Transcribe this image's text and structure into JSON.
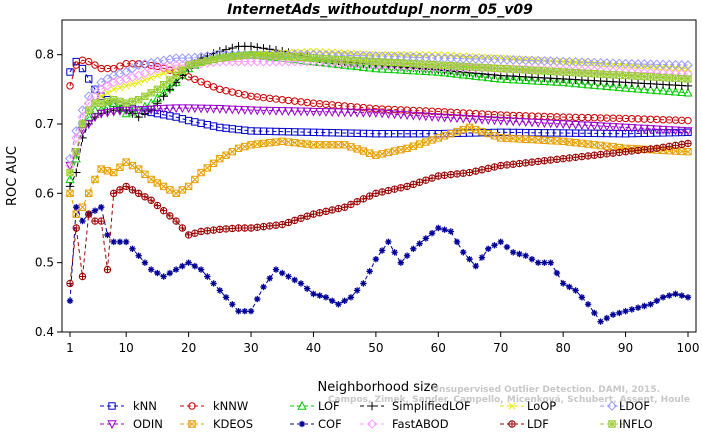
{
  "chart_data": {
    "type": "line",
    "title": "InternetAds_withoutdupl_norm_05_v09",
    "xlabel": "Neighborhood size",
    "ylabel": "ROC AUC",
    "xlim": [
      1,
      100
    ],
    "ylim": [
      0.4,
      0.85
    ],
    "xticks": [
      1,
      10,
      20,
      30,
      40,
      50,
      60,
      70,
      80,
      90,
      100
    ],
    "yticks": [
      0.4,
      0.5,
      0.6,
      0.7,
      0.8
    ],
    "legend_position": "bottom",
    "watermark": [
      "Campos, Zimek, Sander, Campello, Micenková, Schubert, Assent, Houle",
      "Unsupervised Outlier Detection. DAMI, 2015."
    ],
    "series": [
      {
        "name": "kNN",
        "color": "#0000cc",
        "marker": "square",
        "x": [
          1,
          2,
          3,
          4,
          5,
          6,
          8,
          10,
          12,
          15,
          18,
          20,
          25,
          30,
          40,
          50,
          60,
          70,
          80,
          90,
          100
        ],
        "y": [
          0.775,
          0.79,
          0.78,
          0.765,
          0.75,
          0.74,
          0.73,
          0.725,
          0.72,
          0.715,
          0.71,
          0.705,
          0.695,
          0.69,
          0.688,
          0.686,
          0.686,
          0.688,
          0.687,
          0.686,
          0.688
        ]
      },
      {
        "name": "kNNW",
        "color": "#cc0000",
        "marker": "circle",
        "x": [
          1,
          2,
          3,
          4,
          5,
          6,
          8,
          10,
          12,
          15,
          18,
          20,
          25,
          30,
          40,
          50,
          60,
          70,
          80,
          90,
          100
        ],
        "y": [
          0.755,
          0.785,
          0.792,
          0.79,
          0.785,
          0.78,
          0.78,
          0.787,
          0.787,
          0.783,
          0.775,
          0.768,
          0.75,
          0.74,
          0.73,
          0.722,
          0.718,
          0.713,
          0.71,
          0.708,
          0.705
        ]
      },
      {
        "name": "LOF",
        "color": "#00cc00",
        "marker": "triangle",
        "x": [
          1,
          2,
          3,
          4,
          5,
          6,
          8,
          10,
          12,
          14,
          16,
          18,
          20,
          22,
          25,
          28,
          30,
          35,
          40,
          50,
          60,
          70,
          80,
          90,
          100
        ],
        "y": [
          0.62,
          0.65,
          0.7,
          0.71,
          0.72,
          0.72,
          0.73,
          0.715,
          0.72,
          0.73,
          0.745,
          0.76,
          0.78,
          0.79,
          0.795,
          0.8,
          0.8,
          0.795,
          0.79,
          0.78,
          0.775,
          0.765,
          0.76,
          0.752,
          0.745
        ]
      },
      {
        "name": "SimplifiedLOF",
        "color": "#000000",
        "marker": "plus",
        "x": [
          1,
          2,
          3,
          4,
          5,
          6,
          8,
          10,
          12,
          14,
          16,
          18,
          20,
          22,
          25,
          28,
          30,
          35,
          40,
          50,
          60,
          70,
          80,
          90,
          100
        ],
        "y": [
          0.61,
          0.63,
          0.68,
          0.7,
          0.71,
          0.715,
          0.72,
          0.72,
          0.71,
          0.72,
          0.74,
          0.76,
          0.78,
          0.795,
          0.805,
          0.812,
          0.812,
          0.805,
          0.795,
          0.785,
          0.778,
          0.77,
          0.765,
          0.76,
          0.755
        ]
      },
      {
        "name": "LoOP",
        "color": "#e6e600",
        "marker": "x",
        "x": [
          1,
          2,
          3,
          4,
          5,
          6,
          8,
          10,
          12,
          15,
          18,
          20,
          25,
          30,
          40,
          50,
          60,
          70,
          80,
          90,
          100
        ],
        "y": [
          0.63,
          0.66,
          0.7,
          0.72,
          0.73,
          0.74,
          0.75,
          0.755,
          0.76,
          0.77,
          0.78,
          0.785,
          0.795,
          0.8,
          0.805,
          0.8,
          0.8,
          0.795,
          0.79,
          0.785,
          0.78
        ]
      },
      {
        "name": "LDOF",
        "color": "#9999ff",
        "marker": "diamond",
        "x": [
          1,
          2,
          3,
          4,
          5,
          6,
          8,
          10,
          12,
          15,
          18,
          20,
          25,
          30,
          40,
          50,
          60,
          70,
          80,
          90,
          100
        ],
        "y": [
          0.65,
          0.69,
          0.72,
          0.74,
          0.75,
          0.76,
          0.77,
          0.775,
          0.785,
          0.79,
          0.795,
          0.795,
          0.8,
          0.8,
          0.8,
          0.798,
          0.795,
          0.793,
          0.79,
          0.787,
          0.785
        ]
      },
      {
        "name": "ODIN",
        "color": "#9900cc",
        "marker": "triangle-down",
        "x": [
          1,
          2,
          3,
          4,
          5,
          6,
          8,
          10,
          12,
          15,
          18,
          20,
          25,
          30,
          40,
          50,
          60,
          70,
          80,
          90,
          100
        ],
        "y": [
          0.64,
          0.66,
          0.69,
          0.7,
          0.71,
          0.715,
          0.718,
          0.72,
          0.72,
          0.722,
          0.723,
          0.723,
          0.722,
          0.72,
          0.718,
          0.716,
          0.71,
          0.705,
          0.7,
          0.695,
          0.69
        ]
      },
      {
        "name": "KDEOS",
        "color": "#e6a000",
        "marker": "boxtimes",
        "x": [
          1,
          2,
          3,
          4,
          5,
          6,
          8,
          10,
          12,
          14,
          16,
          18,
          20,
          22,
          25,
          28,
          30,
          35,
          40,
          45,
          50,
          55,
          60,
          65,
          70,
          80,
          90,
          100
        ],
        "y": [
          0.6,
          0.57,
          0.58,
          0.6,
          0.62,
          0.635,
          0.63,
          0.645,
          0.635,
          0.62,
          0.61,
          0.6,
          0.61,
          0.63,
          0.65,
          0.665,
          0.67,
          0.675,
          0.67,
          0.67,
          0.655,
          0.665,
          0.68,
          0.695,
          0.68,
          0.675,
          0.665,
          0.66
        ]
      },
      {
        "name": "COF",
        "color": "#000099",
        "marker": "asterisk",
        "x": [
          1,
          2,
          3,
          4,
          5,
          6,
          7,
          8,
          10,
          12,
          14,
          16,
          18,
          20,
          22,
          24,
          26,
          28,
          30,
          32,
          34,
          36,
          38,
          40,
          42,
          44,
          46,
          48,
          50,
          52,
          54,
          56,
          58,
          60,
          62,
          64,
          66,
          68,
          70,
          72,
          74,
          76,
          78,
          80,
          82,
          84,
          86,
          88,
          90,
          92,
          94,
          96,
          98,
          100
        ],
        "y": [
          0.445,
          0.58,
          0.56,
          0.57,
          0.575,
          0.58,
          0.54,
          0.53,
          0.53,
          0.51,
          0.49,
          0.48,
          0.49,
          0.5,
          0.49,
          0.47,
          0.45,
          0.43,
          0.43,
          0.465,
          0.49,
          0.48,
          0.47,
          0.455,
          0.45,
          0.44,
          0.45,
          0.47,
          0.505,
          0.53,
          0.5,
          0.52,
          0.535,
          0.55,
          0.545,
          0.515,
          0.495,
          0.52,
          0.53,
          0.515,
          0.51,
          0.5,
          0.5,
          0.47,
          0.46,
          0.44,
          0.415,
          0.425,
          0.43,
          0.435,
          0.44,
          0.45,
          0.455,
          0.45
        ]
      },
      {
        "name": "FastABOD",
        "color": "#ff99ff",
        "marker": "diamond",
        "x": [
          1,
          2,
          3,
          4,
          5,
          6,
          8,
          10,
          12,
          15,
          18,
          20,
          25,
          30,
          40,
          50,
          60,
          70,
          80,
          90,
          100
        ],
        "y": [
          0.64,
          0.68,
          0.71,
          0.73,
          0.74,
          0.75,
          0.76,
          0.765,
          0.77,
          0.78,
          0.785,
          0.785,
          0.79,
          0.79,
          0.79,
          0.785,
          0.782,
          0.78,
          0.778,
          0.775,
          0.772
        ]
      },
      {
        "name": "LDF",
        "color": "#990000",
        "marker": "circleplus",
        "x": [
          1,
          2,
          3,
          4,
          5,
          6,
          7,
          8,
          10,
          12,
          14,
          16,
          18,
          20,
          22,
          25,
          28,
          30,
          35,
          40,
          45,
          50,
          55,
          60,
          65,
          70,
          75,
          80,
          85,
          90,
          95,
          100
        ],
        "y": [
          0.47,
          0.55,
          0.48,
          0.57,
          0.56,
          0.56,
          0.49,
          0.6,
          0.61,
          0.6,
          0.59,
          0.575,
          0.56,
          0.54,
          0.545,
          0.548,
          0.55,
          0.55,
          0.555,
          0.57,
          0.58,
          0.6,
          0.61,
          0.625,
          0.63,
          0.64,
          0.645,
          0.65,
          0.655,
          0.66,
          0.665,
          0.672
        ]
      },
      {
        "name": "INFLO",
        "color": "#99cc33",
        "marker": "boxplus",
        "x": [
          1,
          2,
          3,
          4,
          5,
          6,
          8,
          10,
          12,
          15,
          18,
          20,
          25,
          30,
          40,
          50,
          60,
          70,
          80,
          90,
          100
        ],
        "y": [
          0.63,
          0.66,
          0.7,
          0.72,
          0.73,
          0.73,
          0.735,
          0.73,
          0.735,
          0.75,
          0.77,
          0.785,
          0.795,
          0.8,
          0.795,
          0.79,
          0.785,
          0.78,
          0.775,
          0.77,
          0.765
        ]
      }
    ]
  }
}
